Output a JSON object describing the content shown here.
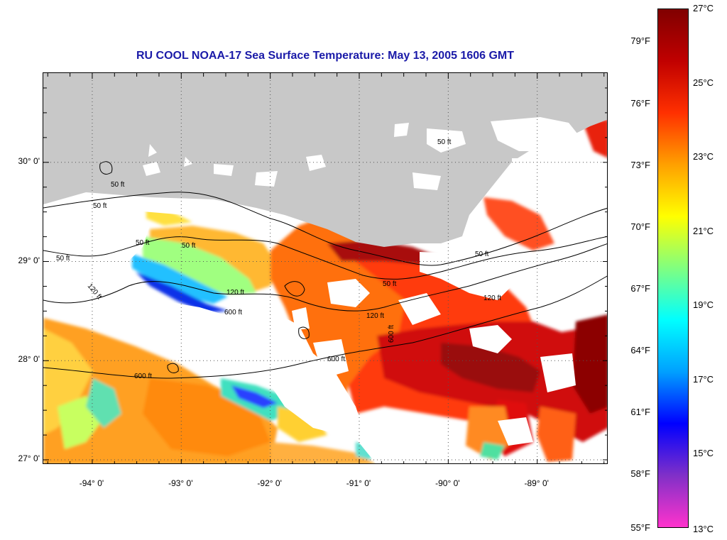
{
  "title": "RU COOL  NOAA-17  Sea Surface Temperature:  May 13, 2005 1606 GMT",
  "map": {
    "extent_lon": [
      -94.55,
      -88.2
    ],
    "extent_lat": [
      26.95,
      30.9
    ],
    "colors": {
      "land": "#c8c8c8",
      "no_data": "#ffffff",
      "contour": "#000000",
      "grid": "#555555"
    },
    "lat_ticks": [
      {
        "value": 30,
        "label": "30° 0'"
      },
      {
        "value": 29,
        "label": "29° 0'"
      },
      {
        "value": 28,
        "label": "28° 0'"
      },
      {
        "value": 27,
        "label": "27° 0'"
      }
    ],
    "lon_ticks": [
      {
        "value": -94,
        "label": "-94° 0'"
      },
      {
        "value": -93,
        "label": "-93° 0'"
      },
      {
        "value": -92,
        "label": "-92° 0'"
      },
      {
        "value": -91,
        "label": "-91° 0'"
      },
      {
        "value": -90,
        "label": "-90° 0'"
      },
      {
        "value": -89,
        "label": "-89° 0'"
      }
    ],
    "contour_labels": [
      "50 ft",
      "50 ft",
      "50 ft",
      "50 ft",
      "50 ft",
      "50 ft",
      "50 ft",
      "50 ft",
      "120 ft",
      "120 ft",
      "120 ft",
      "120 ft",
      "600 ft",
      "600 ft",
      "600 ft",
      "600 ft"
    ]
  },
  "colorbar": {
    "range_c": [
      13,
      27
    ],
    "fahrenheit_labels": [
      "79°F",
      "76°F",
      "73°F",
      "70°F",
      "67°F",
      "64°F",
      "61°F",
      "58°F",
      "55°F"
    ],
    "celsius_labels": [
      "27°C",
      "25°C",
      "23°C",
      "21°C",
      "19°C",
      "17°C",
      "15°C",
      "13°C"
    ],
    "color_stops": [
      "#ff33cc",
      "#8030c8",
      "#0000ff",
      "#00a0ff",
      "#00ffff",
      "#80ff80",
      "#ffff00",
      "#ffa000",
      "#ff3000",
      "#c00000",
      "#800000"
    ]
  }
}
